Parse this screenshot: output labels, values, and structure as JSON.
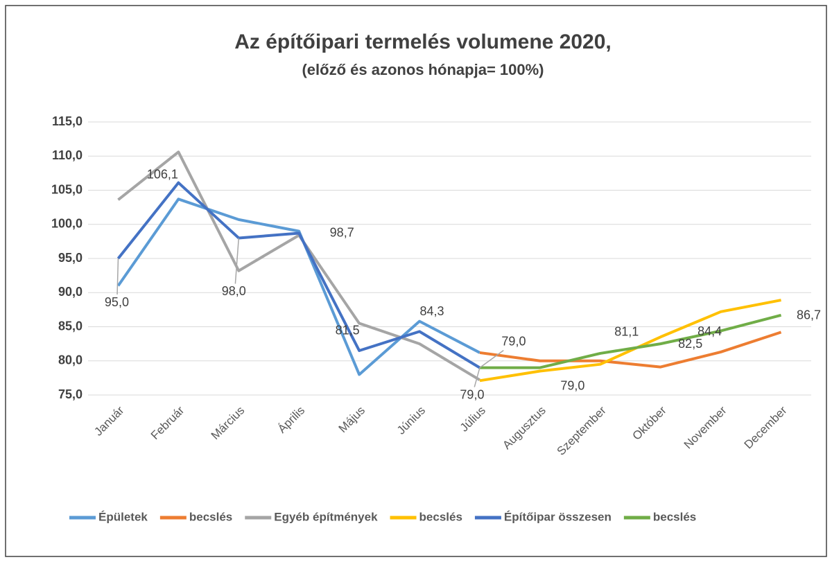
{
  "chart_data": {
    "type": "line",
    "title": "Az építőipari termelés volumene 2020,",
    "subtitle": "(előző és azonos hónapja= 100%)",
    "categories": [
      "Január",
      "Február",
      "Március",
      "Április",
      "Május",
      "Június",
      "Július",
      "Augusztus",
      "Szeptember",
      "Október",
      "November",
      "December"
    ],
    "ylim": [
      75,
      115
    ],
    "yticks": [
      {
        "value": 75,
        "label": "75,0"
      },
      {
        "value": 80,
        "label": "80,0"
      },
      {
        "value": 85,
        "label": "85,0"
      },
      {
        "value": 90,
        "label": "90,0"
      },
      {
        "value": 95,
        "label": "95,0"
      },
      {
        "value": 100,
        "label": "100,0"
      },
      {
        "value": 105,
        "label": "105,0"
      },
      {
        "value": 110,
        "label": "110,0"
      },
      {
        "value": 115,
        "label": "115,0"
      }
    ],
    "grid": true,
    "legend": "bottom",
    "series": [
      {
        "name": "Épületek",
        "color": "#5b9bd5",
        "values": [
          91.0,
          103.7,
          100.7,
          99.0,
          78.0,
          85.8,
          81.2,
          null,
          null,
          null,
          null,
          null
        ]
      },
      {
        "name": "becslés",
        "color": "#ed7d31",
        "values": [
          null,
          null,
          null,
          null,
          null,
          null,
          81.2,
          80.0,
          80.0,
          79.1,
          81.3,
          84.2
        ]
      },
      {
        "name": "Egyéb építmények",
        "color": "#a5a5a5",
        "values": [
          103.6,
          110.6,
          93.2,
          98.4,
          85.5,
          82.5,
          77.2,
          null,
          null,
          null,
          null,
          null
        ]
      },
      {
        "name": "becslés",
        "color": "#ffc000",
        "values": [
          null,
          null,
          null,
          null,
          null,
          null,
          77.1,
          78.5,
          79.5,
          83.5,
          87.2,
          88.9
        ]
      },
      {
        "name": "Építőipar összesen",
        "color": "#4472c4",
        "values": [
          95.0,
          106.1,
          98.0,
          98.7,
          81.5,
          84.3,
          79.0,
          null,
          null,
          null,
          null,
          null
        ],
        "value_labels": [
          "95,0",
          "106,1",
          "98,0",
          "98,7",
          "81,5",
          "84,3",
          "79,0",
          null,
          null,
          null,
          null,
          null
        ]
      },
      {
        "name": "becslés",
        "color": "#70ad47",
        "values": [
          null,
          null,
          null,
          null,
          null,
          null,
          79.0,
          79.0,
          81.1,
          82.5,
          84.4,
          86.7
        ],
        "value_labels": [
          null,
          null,
          null,
          null,
          null,
          null,
          "79,0",
          "79,0",
          "81,1",
          "82,5",
          "84,4",
          "86,7"
        ]
      }
    ]
  }
}
